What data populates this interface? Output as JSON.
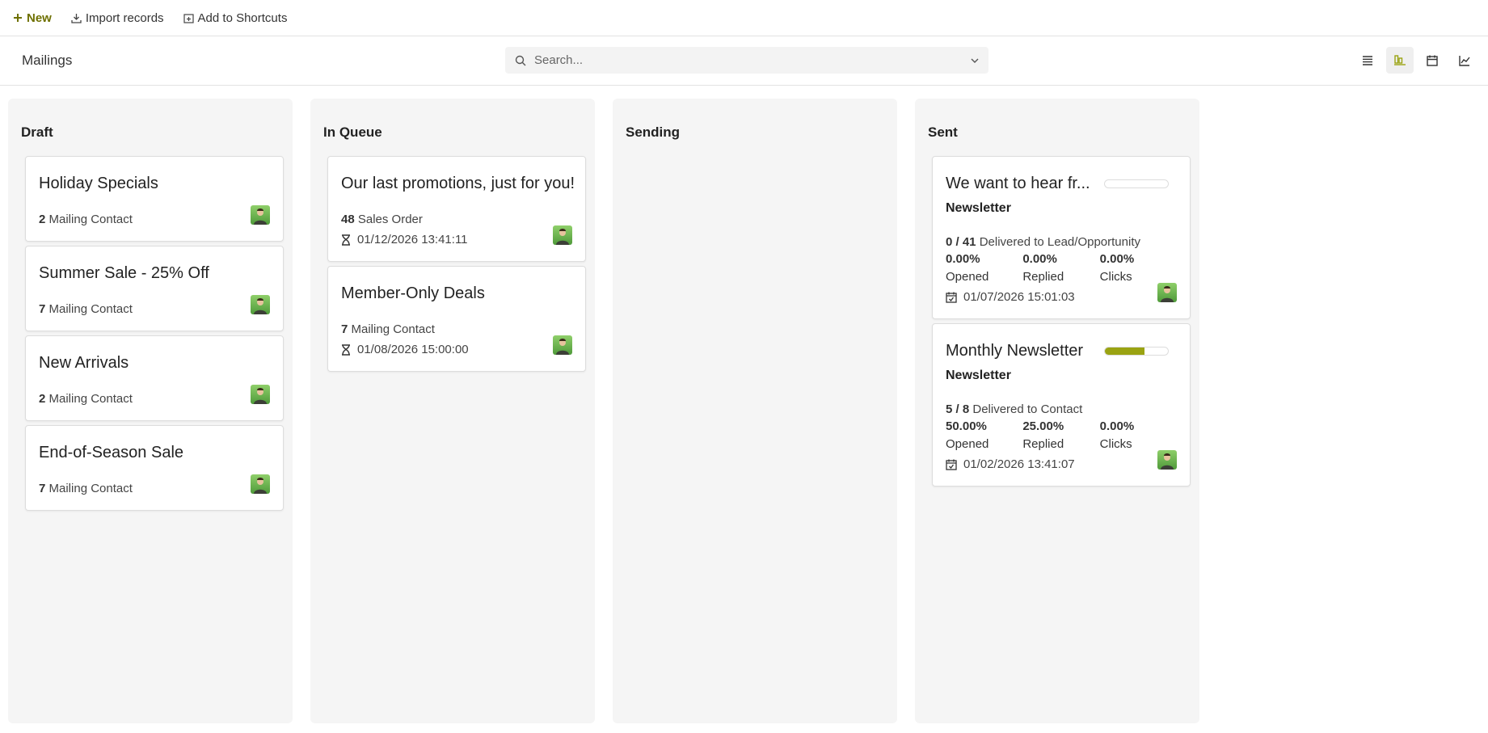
{
  "toolbar": {
    "new": "New",
    "import": "Import records",
    "shortcuts": "Add to Shortcuts"
  },
  "view_title": "Mailings",
  "search_placeholder": "Search...",
  "columns": [
    {
      "title": "Draft",
      "cards": [
        {
          "title": "Holiday Specials",
          "count": 2,
          "count_label": "Mailing Contact"
        },
        {
          "title": "Summer Sale - 25% Off",
          "count": 7,
          "count_label": "Mailing Contact"
        },
        {
          "title": "New Arrivals",
          "count": 2,
          "count_label": "Mailing Contact"
        },
        {
          "title": "End-of-Season Sale",
          "count": 7,
          "count_label": "Mailing Contact"
        }
      ]
    },
    {
      "title": "In Queue",
      "cards": [
        {
          "title": "Our last promotions, just for you!",
          "count": 48,
          "count_label": "Sales Order",
          "date": "01/12/2026 13:41:11"
        },
        {
          "title": "Member-Only Deals",
          "count": 7,
          "count_label": "Mailing Contact",
          "date": "01/08/2026 15:00:00"
        }
      ]
    },
    {
      "title": "Sending",
      "cards": []
    },
    {
      "title": "Sent",
      "cards": [
        {
          "title": "We want to hear fr...",
          "tag": "Newsletter",
          "progress": 0,
          "delivered": "0 / 41",
          "delivered_label": "Delivered to Lead/Opportunity",
          "stats": [
            {
              "value": "0.00%",
              "label": "Opened"
            },
            {
              "value": "0.00%",
              "label": "Replied"
            },
            {
              "value": "0.00%",
              "label": "Clicks"
            }
          ],
          "date": "01/07/2026 15:01:03"
        },
        {
          "title": "Monthly Newsletter",
          "tag": "Newsletter",
          "progress": 62.5,
          "delivered": "5 / 8",
          "delivered_label": "Delivered to Contact",
          "stats": [
            {
              "value": "50.00%",
              "label": "Opened"
            },
            {
              "value": "25.00%",
              "label": "Replied"
            },
            {
              "value": "0.00%",
              "label": "Clicks"
            }
          ],
          "date": "01/02/2026 13:41:07"
        }
      ]
    }
  ]
}
